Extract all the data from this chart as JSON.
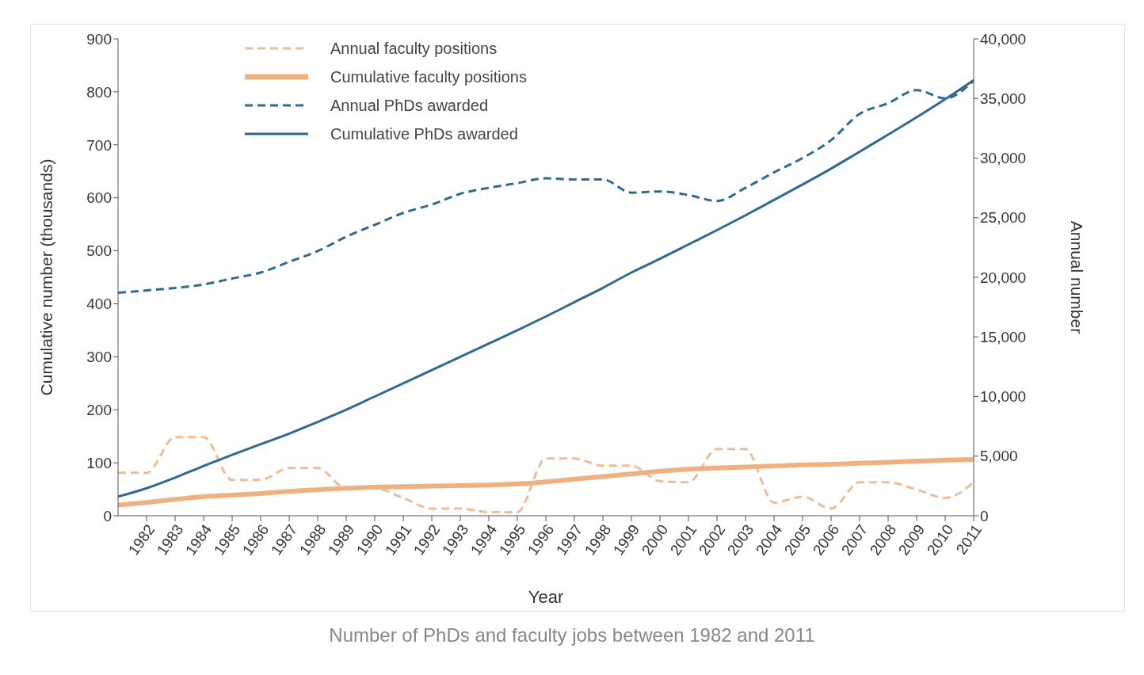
{
  "chart_data": {
    "type": "line",
    "annotations": [
      "Number of PhDs and faculty jobs between 1982 and 2011"
    ],
    "xlabel": "Year",
    "ylabel": "Cumulative number (thousands)",
    "y2label": "Annual number",
    "x": [
      1981,
      1982,
      1983,
      1984,
      1985,
      1986,
      1987,
      1988,
      1989,
      1990,
      1991,
      1992,
      1993,
      1994,
      1995,
      1996,
      1997,
      1998,
      1999,
      2000,
      2001,
      2002,
      2003,
      2004,
      2005,
      2006,
      2007,
      2008,
      2009,
      2010,
      2011
    ],
    "xlim": [
      1981,
      2011
    ],
    "xticks": [
      1982,
      1983,
      1984,
      1985,
      1986,
      1987,
      1988,
      1989,
      1990,
      1991,
      1992,
      1993,
      1994,
      1995,
      1996,
      1997,
      1998,
      1999,
      2000,
      2001,
      2002,
      2003,
      2004,
      2005,
      2006,
      2007,
      2008,
      2009,
      2010,
      2011
    ],
    "ylim": [
      0,
      900
    ],
    "yticks": [
      0,
      100,
      200,
      300,
      400,
      500,
      600,
      700,
      800,
      900
    ],
    "y2lim": [
      0,
      40000
    ],
    "y2ticks": [
      {
        "value": 0,
        "label": "0"
      },
      {
        "value": 5000,
        "label": "5,000"
      },
      {
        "value": 10000,
        "label": "10,000"
      },
      {
        "value": 15000,
        "label": "15,000"
      },
      {
        "value": 20000,
        "label": "20,000"
      },
      {
        "value": 25000,
        "label": "25,000"
      },
      {
        "value": 30000,
        "label": "30,000"
      },
      {
        "value": 35000,
        "label": "35,000"
      },
      {
        "value": 40000,
        "label": "40,000"
      }
    ],
    "grid": false,
    "legend": "top left",
    "marker": "none",
    "series": [
      {
        "name": "Annual faculty positions",
        "color": "#f0bc94",
        "axis": "y2",
        "line_style": "dashed",
        "values": [
          3600,
          3600,
          6600,
          6600,
          3000,
          3000,
          4000,
          4000,
          2300,
          2300,
          1500,
          600,
          600,
          300,
          300,
          4800,
          4800,
          4200,
          4200,
          2900,
          2800,
          5600,
          5600,
          1100,
          1600,
          600,
          2800,
          2800,
          2200,
          1500,
          2800
        ]
      },
      {
        "name": "Cumulative faculty positions",
        "color": "#f0b182",
        "line_style": "solid",
        "values": [
          20,
          25,
          31,
          36,
          39,
          42,
          46,
          49,
          52,
          54,
          55,
          56,
          57,
          58,
          60,
          64,
          69,
          74,
          79,
          84,
          88,
          90,
          92,
          94,
          96,
          97,
          99,
          101,
          103,
          105,
          106
        ]
      },
      {
        "name": "Annual PhDs awarded",
        "color": "#2f6b8f",
        "axis": "y2",
        "line_style": "dashed",
        "values": [
          18700,
          18900,
          19100,
          19400,
          19900,
          20400,
          21300,
          22200,
          23400,
          24400,
          25400,
          26100,
          27000,
          27500,
          27900,
          28300,
          28200,
          28200,
          27100,
          27200,
          26900,
          26400,
          27500,
          28800,
          30000,
          31500,
          33700,
          34600,
          35700,
          35000,
          36500
        ]
      },
      {
        "name": "Cumulative PhDs awarded",
        "color": "#2f6b8f",
        "line_style": "solid",
        "values": [
          36,
          52,
          72,
          94,
          115,
          135,
          155,
          177,
          200,
          225,
          250,
          275,
          300,
          325,
          350,
          376,
          403,
          430,
          459,
          485,
          512,
          539,
          567,
          596,
          625,
          655,
          687,
          719,
          752,
          786,
          822
        ]
      }
    ]
  }
}
